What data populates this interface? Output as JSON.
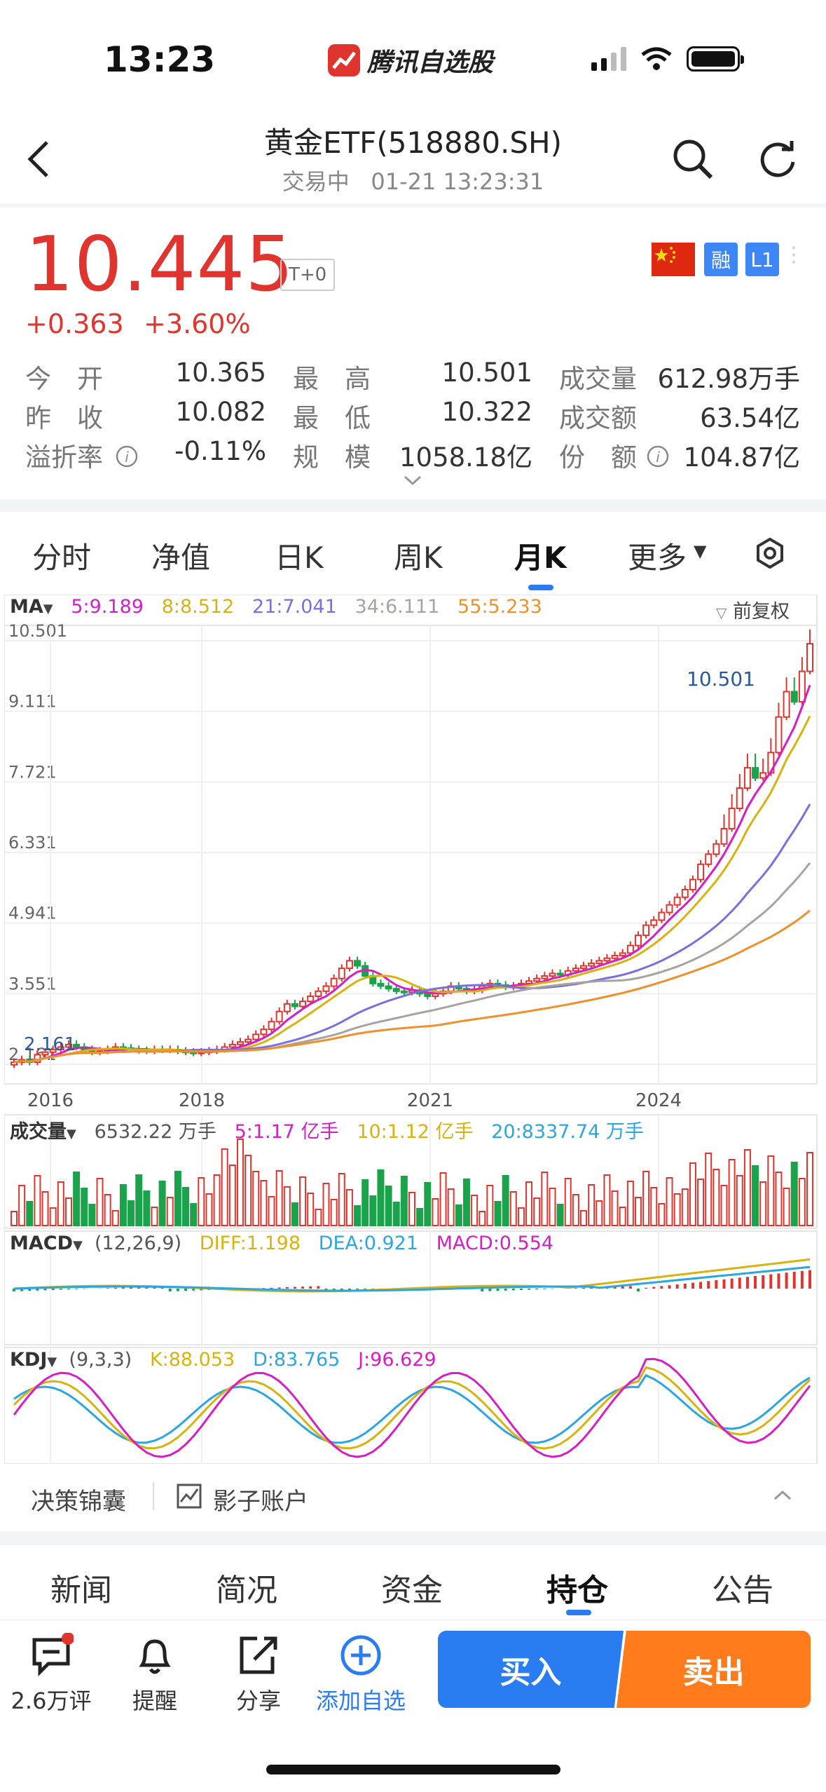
{
  "status_bar": {
    "time": "13:23",
    "app_name": "腾讯自选股"
  },
  "header": {
    "title": "黄金ETF(518880.SH)",
    "status": "交易中",
    "datetime": "01-21 13:23:31"
  },
  "quote": {
    "price": "10.445",
    "t_plus": "T+0",
    "change": "+0.363",
    "change_pct": "+3.60%",
    "badges": {
      "margin": "融",
      "level": "L1"
    },
    "rows": [
      {
        "l1": "今　开",
        "v1": "10.365",
        "l2": "最　高",
        "v2": "10.501",
        "l3": "成交量",
        "v3": "612.98万手"
      },
      {
        "l1": "昨　收",
        "v1": "10.082",
        "l2": "最　低",
        "v2": "10.322",
        "l3": "成交额",
        "v3": "63.54亿"
      },
      {
        "l1": "溢折率",
        "v1": "-0.11%",
        "l2": "规　模",
        "v2": "1058.18亿",
        "l3": "份　额",
        "v3": "104.87亿"
      }
    ]
  },
  "chart_tabs": [
    "分时",
    "净值",
    "日K",
    "周K",
    "月K",
    "更多"
  ],
  "active_chart_tab": "月K",
  "ma_legend": {
    "label": "MA",
    "ma5": "5:9.189",
    "ma8": "8:8.512",
    "ma21": "21:7.041",
    "ma34": "34:6.111",
    "ma55": "55:5.233",
    "adjust": "前复权"
  },
  "volume_legend": {
    "label": "成交量",
    "value": "6532.22 万手",
    "ma5": "5:1.17 亿手",
    "ma10": "10:1.12 亿手",
    "ma20": "20:8337.74 万手"
  },
  "macd_legend": {
    "label": "MACD",
    "params": "(12,26,9)",
    "diff": "DIFF:1.198",
    "dea": "DEA:0.921",
    "macd": "MACD:0.554"
  },
  "kdj_legend": {
    "label": "KDJ",
    "params": "(9,3,3)",
    "k": "K:88.053",
    "d": "D:83.765",
    "j": "J:96.629"
  },
  "colors": {
    "up": "#e0342e",
    "down": "#1aa34a",
    "ma5": "#d51ec6",
    "ma8": "#d8b310",
    "ma21": "#7a6fe0",
    "ma34": "#a8a3a0",
    "ma55": "#f0902a",
    "accent": "#2a7df0",
    "sell": "#ff7b1c"
  },
  "chart_data": {
    "type": "candlestick",
    "period": "monthly",
    "y_ticks": [
      "10.501",
      "9.111",
      "7.721",
      "6.331",
      "4.941",
      "3.551",
      "2.161"
    ],
    "x_ticks": [
      "2016",
      "2018",
      "2021",
      "2024"
    ],
    "max_label": "10.501",
    "min_label": "2.161",
    "ylim": [
      2.161,
      10.501
    ],
    "close_series": [
      2.2,
      2.25,
      2.2,
      2.35,
      2.4,
      2.45,
      2.5,
      2.55,
      2.5,
      2.45,
      2.4,
      2.42,
      2.45,
      2.5,
      2.48,
      2.45,
      2.43,
      2.42,
      2.45,
      2.44,
      2.45,
      2.42,
      2.4,
      2.38,
      2.4,
      2.42,
      2.45,
      2.5,
      2.55,
      2.6,
      2.65,
      2.75,
      2.85,
      3.0,
      3.2,
      3.35,
      3.3,
      3.4,
      3.5,
      3.6,
      3.7,
      3.85,
      4.05,
      4.2,
      4.1,
      3.9,
      3.75,
      3.7,
      3.65,
      3.6,
      3.58,
      3.62,
      3.55,
      3.5,
      3.55,
      3.6,
      3.7,
      3.65,
      3.6,
      3.62,
      3.7,
      3.75,
      3.72,
      3.68,
      3.7,
      3.75,
      3.8,
      3.85,
      3.9,
      3.95,
      3.92,
      4.0,
      4.05,
      4.1,
      4.15,
      4.2,
      4.25,
      4.3,
      4.35,
      4.5,
      4.7,
      4.9,
      5.0,
      5.15,
      5.3,
      5.45,
      5.6,
      5.8,
      6.1,
      6.3,
      6.5,
      6.8,
      7.2,
      7.6,
      8.0,
      7.8,
      7.9,
      8.3,
      9.0,
      9.5,
      9.3,
      9.9,
      10.445
    ]
  },
  "bottom_panel": {
    "decision": "决策锦囊",
    "shadow": "影子账户"
  },
  "bottom_tabs": [
    "新闻",
    "简况",
    "资金",
    "持仓",
    "公告"
  ],
  "active_bottom_tab": "持仓",
  "toolbar": {
    "comments": "2.6万评",
    "remind": "提醒",
    "share": "分享",
    "add": "添加自选",
    "buy": "买入",
    "sell": "卖出"
  }
}
